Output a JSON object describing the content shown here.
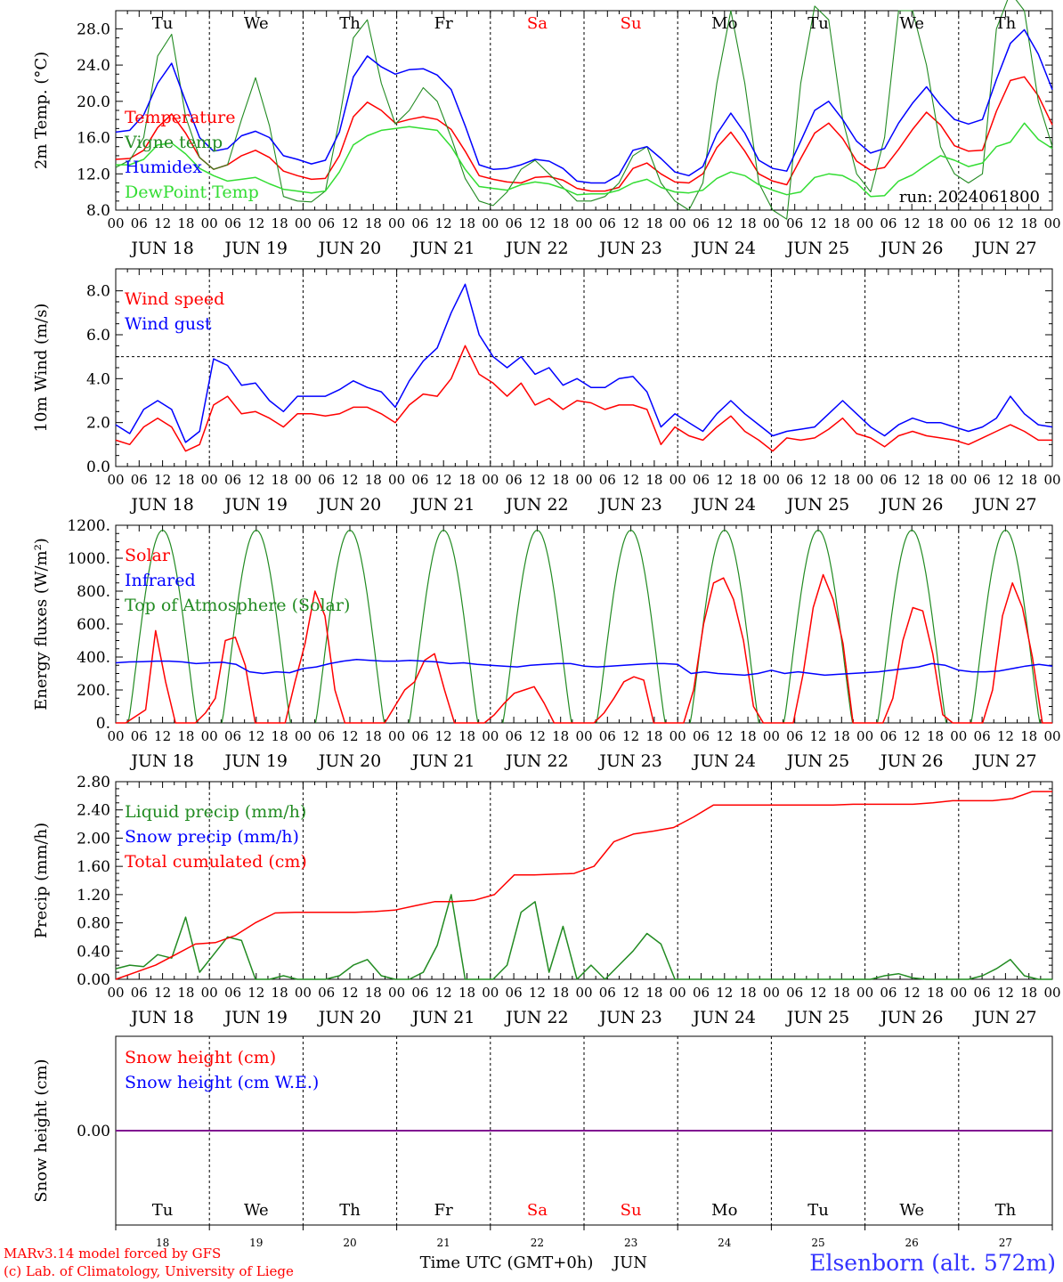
{
  "footer": {
    "credit_line1": "MARv3.14 model forced by GFS",
    "credit_line2": "(c) Lab. of Climatology, University of Liege",
    "station": "Elsenborn (alt. 572m)"
  },
  "colors": {
    "red": "#ff0000",
    "green": "#228b22",
    "blue": "#0000ff",
    "lime": "#33dd33",
    "purple": "#800080",
    "weekend": "#ff0000"
  },
  "chart_data": [
    {
      "type": "line",
      "ylabel": "2m Temp. (°C)",
      "ylim": [
        8,
        30
      ],
      "yticks": [
        8,
        12,
        16,
        20,
        24,
        28
      ],
      "ytick_labels": [
        "8.0",
        "12.0",
        "16.0",
        "20.0",
        "24.0",
        "28.0"
      ],
      "weekday_labels": [
        "Tu",
        "We",
        "Th",
        "Fr",
        "Sa",
        "Su",
        "Mo",
        "Tu",
        "We",
        "Th"
      ],
      "annotation": "run: 2024061800",
      "x_hours_labels": [
        "00",
        "06",
        "12",
        "18"
      ],
      "date_labels": [
        "JUN 18",
        "JUN 19",
        "JUN 20",
        "JUN 21",
        "JUN 22",
        "JUN 23",
        "JUN 24",
        "JUN 25",
        "JUN 26",
        "JUN 27"
      ],
      "x_unit": "hours since 2024-06-18 00 UTC, 3-hourly",
      "series": [
        {
          "name": "Temperature",
          "color": "#ff0000",
          "values": [
            13.6,
            13.7,
            14.6,
            17.1,
            18.6,
            16.5,
            13.8,
            12.5,
            13.0,
            14.0,
            14.6,
            13.8,
            12.3,
            11.8,
            11.4,
            11.5,
            14.0,
            18.3,
            19.9,
            19.0,
            17.6,
            18.0,
            18.3,
            18.0,
            16.9,
            14.5,
            11.8,
            11.4,
            11.1,
            11.0,
            11.6,
            11.7,
            11.3,
            10.4,
            10.1,
            10.1,
            10.5,
            12.6,
            13.2,
            12.0,
            11.1,
            11.0,
            12.0,
            14.9,
            16.6,
            14.5,
            12.0,
            11.2,
            10.8,
            13.7,
            16.5,
            17.6,
            15.9,
            13.4,
            12.4,
            12.7,
            14.7,
            16.9,
            18.8,
            17.4,
            15.1,
            14.5,
            14.6,
            18.9,
            22.3,
            22.7,
            20.6,
            17.4
          ]
        },
        {
          "name": "Vigne temp",
          "color": "#228b22",
          "values": [
            12.7,
            13.5,
            16.0,
            25.0,
            27.4,
            18.3,
            13.8,
            12.5,
            13.0,
            18.0,
            22.6,
            17.3,
            9.5,
            9.0,
            8.9,
            10.1,
            18.0,
            27.0,
            29.0,
            22.0,
            17.5,
            19.0,
            21.5,
            20.0,
            16.0,
            11.5,
            9.0,
            8.5,
            10.0,
            12.5,
            13.5,
            12.0,
            10.5,
            9.0,
            9.0,
            9.5,
            11.0,
            14.0,
            15.0,
            11.0,
            9.0,
            8.0,
            11.0,
            22.0,
            30.0,
            22.0,
            11.0,
            8.0,
            7.0,
            22.0,
            30.5,
            29.0,
            18.0,
            12.0,
            10.0,
            16.0,
            30.0,
            30.0,
            24.0,
            15.0,
            12.0,
            11.0,
            12.0,
            28.0,
            32.0,
            30.0,
            20.0,
            15.0
          ]
        },
        {
          "name": "Humidex",
          "color": "#0000ff",
          "values": [
            16.6,
            16.8,
            18.5,
            22.0,
            24.2,
            20.0,
            16.0,
            14.5,
            14.8,
            16.2,
            16.7,
            16.0,
            14.0,
            13.6,
            13.1,
            13.5,
            16.6,
            22.7,
            25.0,
            23.8,
            23.0,
            23.5,
            23.6,
            22.9,
            21.3,
            17.3,
            13.0,
            12.5,
            12.6,
            13.0,
            13.6,
            13.4,
            12.6,
            11.2,
            11.0,
            11.0,
            11.9,
            14.6,
            15.0,
            13.7,
            12.2,
            11.8,
            12.8,
            16.4,
            18.7,
            16.5,
            13.5,
            12.6,
            12.3,
            15.6,
            19.0,
            20.0,
            18.0,
            15.6,
            14.3,
            14.8,
            17.6,
            19.8,
            21.6,
            19.6,
            18.0,
            17.5,
            18.0,
            22.4,
            26.4,
            27.9,
            25.2,
            21.3
          ]
        },
        {
          "name": "DewPoint Temp",
          "color": "#33dd33",
          "values": [
            13.0,
            13.0,
            13.6,
            15.2,
            15.4,
            14.2,
            12.6,
            11.8,
            11.2,
            11.4,
            11.6,
            10.9,
            10.3,
            10.1,
            9.9,
            10.1,
            12.2,
            15.2,
            16.2,
            16.8,
            17.0,
            17.2,
            17.0,
            16.8,
            15.0,
            12.5,
            10.6,
            10.4,
            10.2,
            10.8,
            11.1,
            10.9,
            10.4,
            9.7,
            9.8,
            9.8,
            10.2,
            11.0,
            11.4,
            10.5,
            10.0,
            9.9,
            10.2,
            11.5,
            12.2,
            11.8,
            10.8,
            10.2,
            9.7,
            10.0,
            11.6,
            12.0,
            11.8,
            11.0,
            9.5,
            9.6,
            11.2,
            11.9,
            13.0,
            14.0,
            13.5,
            12.8,
            13.2,
            15.0,
            15.5,
            17.6,
            15.8,
            14.8
          ]
        }
      ]
    },
    {
      "type": "line",
      "ylabel": "10m Wind (m/s)",
      "ylim": [
        0,
        9
      ],
      "yticks": [
        0,
        2,
        4,
        6,
        8
      ],
      "ytick_labels": [
        "0.0",
        "2.0",
        "4.0",
        "6.0",
        "8.0"
      ],
      "reference_line": 5,
      "x_hours_labels": [
        "00",
        "06",
        "12",
        "18"
      ],
      "date_labels": [
        "JUN 18",
        "JUN 19",
        "JUN 20",
        "JUN 21",
        "JUN 22",
        "JUN 23",
        "JUN 24",
        "JUN 25",
        "JUN 26",
        "JUN 27"
      ],
      "series": [
        {
          "name": "Wind speed",
          "color": "#ff0000",
          "values": [
            1.2,
            1.0,
            1.8,
            2.2,
            1.8,
            0.7,
            1.0,
            2.8,
            3.2,
            2.4,
            2.5,
            2.2,
            1.8,
            2.4,
            2.4,
            2.3,
            2.4,
            2.7,
            2.7,
            2.4,
            2.0,
            2.8,
            3.3,
            3.2,
            4.0,
            5.5,
            4.2,
            3.8,
            3.2,
            3.8,
            2.8,
            3.1,
            2.6,
            3.0,
            2.9,
            2.6,
            2.8,
            2.8,
            2.6,
            1.0,
            1.8,
            1.4,
            1.2,
            1.8,
            2.3,
            1.6,
            1.2,
            0.7,
            1.3,
            1.2,
            1.3,
            1.7,
            2.2,
            1.5,
            1.3,
            0.9,
            1.4,
            1.6,
            1.4,
            1.3,
            1.2,
            1.0,
            1.3,
            1.6,
            1.9,
            1.6,
            1.2,
            1.2
          ]
        },
        {
          "name": "Wind gust",
          "color": "#0000ff",
          "values": [
            1.9,
            1.5,
            2.6,
            3.0,
            2.6,
            1.1,
            1.6,
            4.9,
            4.6,
            3.7,
            3.8,
            3.0,
            2.5,
            3.2,
            3.2,
            3.2,
            3.5,
            3.9,
            3.6,
            3.4,
            2.7,
            3.9,
            4.8,
            5.4,
            7.0,
            8.3,
            6.0,
            5.0,
            4.5,
            5.0,
            4.2,
            4.5,
            3.7,
            4.0,
            3.6,
            3.6,
            4.0,
            4.1,
            3.4,
            1.8,
            2.4,
            2.0,
            1.6,
            2.4,
            3.0,
            2.4,
            1.9,
            1.4,
            1.6,
            1.7,
            1.8,
            2.4,
            3.0,
            2.4,
            1.8,
            1.4,
            1.9,
            2.2,
            2.0,
            2.0,
            1.8,
            1.6,
            1.8,
            2.2,
            3.2,
            2.4,
            1.9,
            1.8
          ]
        }
      ]
    },
    {
      "type": "line",
      "ylabel": "Energy fluxes (W/m²)",
      "ylim": [
        0,
        1200
      ],
      "yticks": [
        0,
        200,
        400,
        600,
        800,
        1000,
        1200
      ],
      "ytick_labels": [
        "0.",
        "200.",
        "400.",
        "600.",
        "800.",
        "1000.",
        "1200."
      ],
      "x_hours_labels": [
        "00",
        "06",
        "12",
        "18"
      ],
      "date_labels": [
        "JUN 18",
        "JUN 19",
        "JUN 20",
        "JUN 21",
        "JUN 22",
        "JUN 23",
        "JUN 24",
        "JUN 25",
        "JUN 26",
        "JUN 27"
      ],
      "series": [
        {
          "name": "Solar",
          "color": "#ff0000",
          "values": [
            0,
            0,
            40,
            80,
            560,
            250,
            0,
            0,
            0,
            60,
            150,
            500,
            520,
            350,
            0,
            0,
            0,
            0,
            250,
            480,
            800,
            650,
            200,
            0,
            0,
            0,
            0,
            0,
            100,
            200,
            250,
            380,
            420,
            200,
            0,
            0,
            0,
            0,
            50,
            120,
            180,
            200,
            220,
            120,
            0,
            0,
            0,
            0,
            0,
            60,
            150,
            250,
            280,
            260,
            0,
            0,
            0,
            0,
            200,
            600,
            850,
            880,
            750,
            500,
            100,
            0,
            0,
            0,
            0,
            300,
            700,
            900,
            750,
            480,
            0,
            0,
            0,
            0,
            150,
            500,
            700,
            680,
            420,
            50,
            0,
            0,
            0,
            0,
            200,
            650,
            850,
            700,
            400,
            0,
            0
          ]
        },
        {
          "name": "Infrared",
          "color": "#0000ff",
          "values": [
            365,
            370,
            372,
            375,
            375,
            370,
            360,
            365,
            368,
            355,
            310,
            300,
            310,
            305,
            330,
            340,
            360,
            375,
            385,
            380,
            375,
            375,
            380,
            375,
            370,
            360,
            365,
            355,
            350,
            345,
            340,
            350,
            355,
            360,
            360,
            345,
            340,
            345,
            350,
            355,
            360,
            360,
            355,
            300,
            310,
            300,
            295,
            290,
            300,
            320,
            300,
            310,
            300,
            290,
            295,
            300,
            305,
            310,
            320,
            330,
            340,
            360,
            350,
            320,
            310,
            310,
            315,
            330,
            345,
            355,
            345
          ]
        },
        {
          "name": "Top of Atmosphere (Solar)",
          "color": "#228b22",
          "values": []
        }
      ]
    },
    {
      "type": "line",
      "ylabel": "Precip (mm/h)",
      "ylim": [
        0,
        2.8
      ],
      "yticks": [
        0,
        0.4,
        0.8,
        1.2,
        1.6,
        2.0,
        2.4,
        2.8
      ],
      "ytick_labels": [
        "0.00",
        "0.40",
        "0.80",
        "1.20",
        "1.60",
        "2.00",
        "2.40",
        "2.80"
      ],
      "x_hours_labels": [
        "00",
        "06",
        "12",
        "18"
      ],
      "date_labels": [
        "JUN 18",
        "JUN 19",
        "JUN 20",
        "JUN 21",
        "JUN 22",
        "JUN 23",
        "JUN 24",
        "JUN 25",
        "JUN 26",
        "JUN 27"
      ],
      "series": [
        {
          "name": "Liquid precip (mm/h)",
          "color": "#228b22",
          "values": [
            0.15,
            0.2,
            0.18,
            0.35,
            0.3,
            0.88,
            0.1,
            0.35,
            0.6,
            0.55,
            0.0,
            0.0,
            0.05,
            0.0,
            0.0,
            0.0,
            0.05,
            0.2,
            0.28,
            0.05,
            0.0,
            0.0,
            0.1,
            0.48,
            1.2,
            0.0,
            0.0,
            0.0,
            0.2,
            0.95,
            1.1,
            0.1,
            0.75,
            0.0,
            0.2,
            0.0,
            0.2,
            0.4,
            0.65,
            0.5,
            0.0,
            0.0,
            0.0,
            0.0,
            0.0,
            0.0,
            0.0,
            0.0,
            0.0,
            0.0,
            0.0,
            0.0,
            0.0,
            0.0,
            0.0,
            0.05,
            0.08,
            0.02,
            0.0,
            0.0,
            0.0,
            0.0,
            0.05,
            0.15,
            0.28,
            0.05,
            0.0,
            0.0
          ]
        },
        {
          "name": "Snow precip (mm/h)",
          "color": "#0000ff",
          "values": []
        },
        {
          "name": "Total cumulated (cm)",
          "color": "#ff0000",
          "values": [
            0.0,
            0.1,
            0.2,
            0.35,
            0.5,
            0.52,
            0.62,
            0.8,
            0.94,
            0.95,
            0.95,
            0.95,
            0.95,
            0.96,
            0.98,
            1.04,
            1.1,
            1.1,
            1.12,
            1.2,
            1.48,
            1.48,
            1.49,
            1.5,
            1.6,
            1.95,
            2.06,
            2.1,
            2.15,
            2.3,
            2.47,
            2.47,
            2.47,
            2.47,
            2.47,
            2.47,
            2.47,
            2.48,
            2.48,
            2.48,
            2.48,
            2.5,
            2.53,
            2.53,
            2.53,
            2.56,
            2.66,
            2.66
          ]
        }
      ]
    },
    {
      "type": "line",
      "ylabel": "Snow height (cm)",
      "ytick_labels": [
        "0.00"
      ],
      "weekday_labels": [
        "Tu",
        "We",
        "Th",
        "Fr",
        "Sa",
        "Su",
        "Mo",
        "Tu",
        "We",
        "Th"
      ],
      "day_numbers": [
        "18",
        "19",
        "20",
        "21",
        "22",
        "23",
        "24",
        "25",
        "26",
        "27"
      ],
      "xlabel": "Time UTC (GMT+0h)",
      "month_label": "JUN",
      "series": [
        {
          "name": "Snow height (cm)",
          "color": "#ff0000",
          "values": [
            0,
            0
          ]
        },
        {
          "name": "Snow height (cm W.E.)",
          "color": "#0000ff",
          "values": [
            0,
            0
          ]
        }
      ]
    }
  ]
}
